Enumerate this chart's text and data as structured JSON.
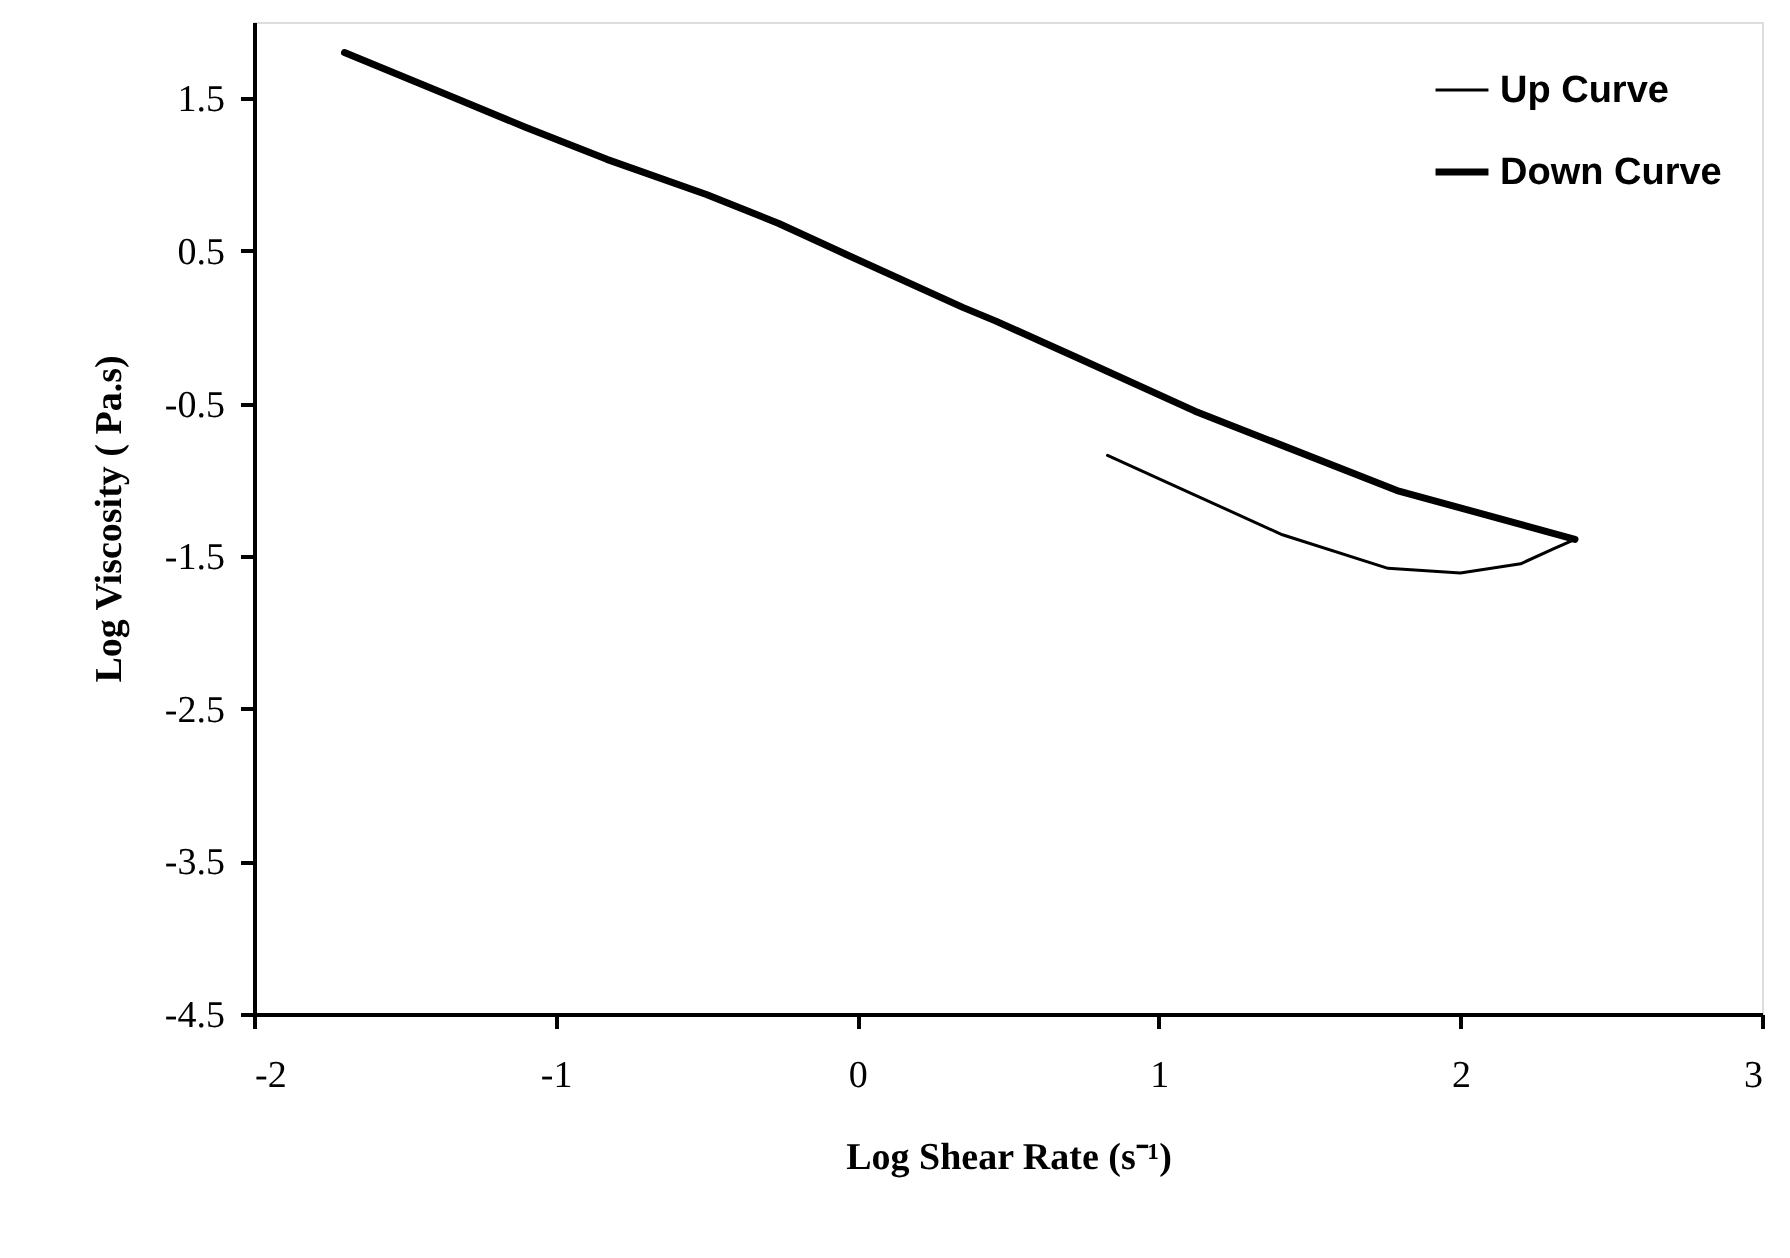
{
  "chart_data": {
    "type": "line",
    "xlabel": "Log Shear Rate (s⁻¹)",
    "ylabel": "Log Viscosity ( Pa.s)",
    "xlim": [
      -2,
      3
    ],
    "xticks": [
      -2,
      -1,
      0,
      1,
      2,
      3
    ],
    "ylim": [
      -4.5,
      2.0
    ],
    "yticks": [
      -4.5,
      -3.5,
      -2.5,
      -1.5,
      -0.5,
      0.5,
      1.5
    ],
    "grid": false,
    "legend": "top right",
    "marker": "none",
    "line_style": "solid",
    "series": [
      {
        "name": "Up Curve",
        "color": "#000000",
        "x": [
          0.83,
          1.12,
          1.41,
          1.76,
          2.0,
          2.2,
          2.31,
          2.38
        ],
        "values": [
          -0.84,
          -1.1,
          -1.36,
          -1.58,
          -1.61,
          -1.55,
          -1.45,
          -1.39
        ]
      },
      {
        "name": "Down Curve",
        "color": "#000000",
        "x": [
          -1.7,
          -1.38,
          -1.1,
          -0.83,
          -0.5,
          -0.26,
          -0.04,
          0.35,
          0.46,
          0.73,
          1.12,
          1.79,
          2.38
        ],
        "values": [
          1.8,
          1.54,
          1.31,
          1.1,
          0.87,
          0.68,
          0.48,
          0.13,
          0.04,
          -0.2,
          -0.55,
          -1.07,
          -1.39
        ]
      }
    ]
  }
}
